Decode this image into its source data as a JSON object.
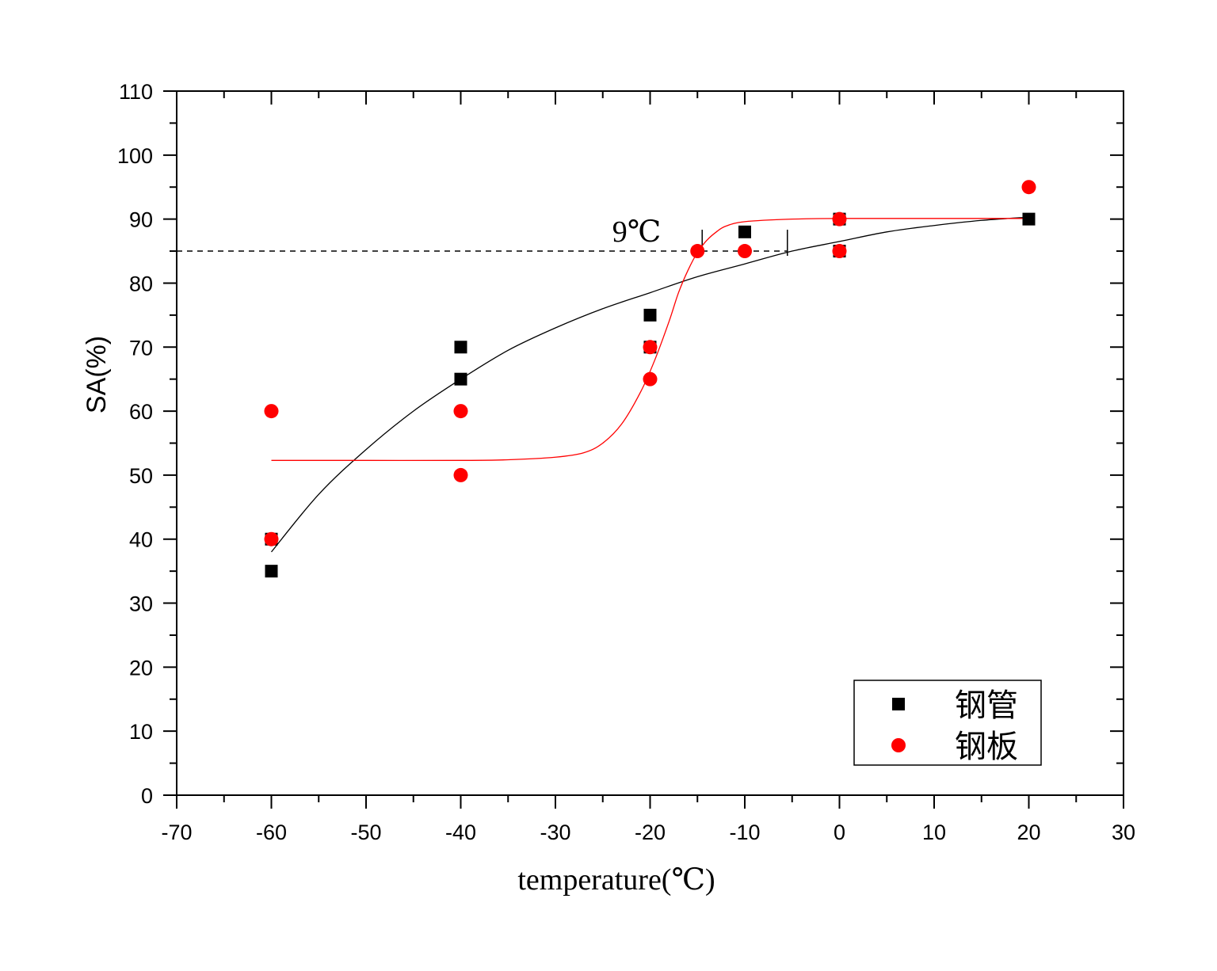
{
  "chart_data": {
    "type": "scatter",
    "xlabel": "temperature(℃)",
    "ylabel": "SA(%)",
    "xlim": [
      -70,
      30
    ],
    "ylim": [
      0,
      110
    ],
    "x_ticks": [
      "-70",
      "-60",
      "-50",
      "-40",
      "-30",
      "-20",
      "-10",
      "0",
      "10",
      "20",
      "30"
    ],
    "y_ticks": [
      "0",
      "10",
      "20",
      "30",
      "40",
      "50",
      "60",
      "70",
      "80",
      "90",
      "100",
      "110"
    ],
    "grid": false,
    "legend_position": "bottom-right",
    "series": [
      {
        "name": "钢管",
        "marker": "square",
        "color": "#000000",
        "points": [
          [
            -60,
            35
          ],
          [
            -60,
            40
          ],
          [
            -40,
            70
          ],
          [
            -40,
            65
          ],
          [
            -20,
            75
          ],
          [
            -20,
            70
          ],
          [
            -10,
            88
          ],
          [
            0,
            90
          ],
          [
            0,
            85
          ],
          [
            20,
            90
          ]
        ],
        "fit_curve": [
          [
            -60,
            38
          ],
          [
            -55,
            47
          ],
          [
            -50,
            54
          ],
          [
            -45,
            60
          ],
          [
            -40,
            65
          ],
          [
            -35,
            69.5
          ],
          [
            -30,
            73
          ],
          [
            -25,
            76
          ],
          [
            -20,
            78.5
          ],
          [
            -15,
            81
          ],
          [
            -10,
            83
          ],
          [
            -5,
            85
          ],
          [
            0,
            86.5
          ],
          [
            5,
            88
          ],
          [
            10,
            89
          ],
          [
            15,
            89.8
          ],
          [
            20,
            90.3
          ]
        ]
      },
      {
        "name": "钢板",
        "marker": "circle",
        "color": "#ff0000",
        "points": [
          [
            -60,
            60
          ],
          [
            -60,
            40
          ],
          [
            -40,
            60
          ],
          [
            -40,
            50
          ],
          [
            -20,
            70
          ],
          [
            -20,
            65
          ],
          [
            -15,
            85
          ],
          [
            -10,
            85
          ],
          [
            0,
            90
          ],
          [
            0,
            85
          ],
          [
            20,
            95
          ]
        ],
        "fit_curve": [
          [
            -60,
            52.3
          ],
          [
            -50,
            52.3
          ],
          [
            -40,
            52.3
          ],
          [
            -35,
            52.4
          ],
          [
            -30,
            52.8
          ],
          [
            -27,
            53.5
          ],
          [
            -25,
            55
          ],
          [
            -23,
            58
          ],
          [
            -21,
            63
          ],
          [
            -19.5,
            68
          ],
          [
            -18,
            74
          ],
          [
            -17,
            78.5
          ],
          [
            -16,
            82
          ],
          [
            -15,
            84.8
          ],
          [
            -14,
            86.7
          ],
          [
            -13,
            88
          ],
          [
            -12,
            88.9
          ],
          [
            -10,
            89.6
          ],
          [
            -5,
            90
          ],
          [
            0,
            90.1
          ],
          [
            10,
            90.1
          ],
          [
            20,
            90.1
          ]
        ]
      }
    ],
    "annotations": {
      "reference_line_y": 85,
      "reference_x_start": -70,
      "reference_x_end": -5.5,
      "marker_x": [
        -14.5,
        -5.5
      ],
      "label": "9℃",
      "label_x": -24,
      "label_y": 86.5
    }
  }
}
